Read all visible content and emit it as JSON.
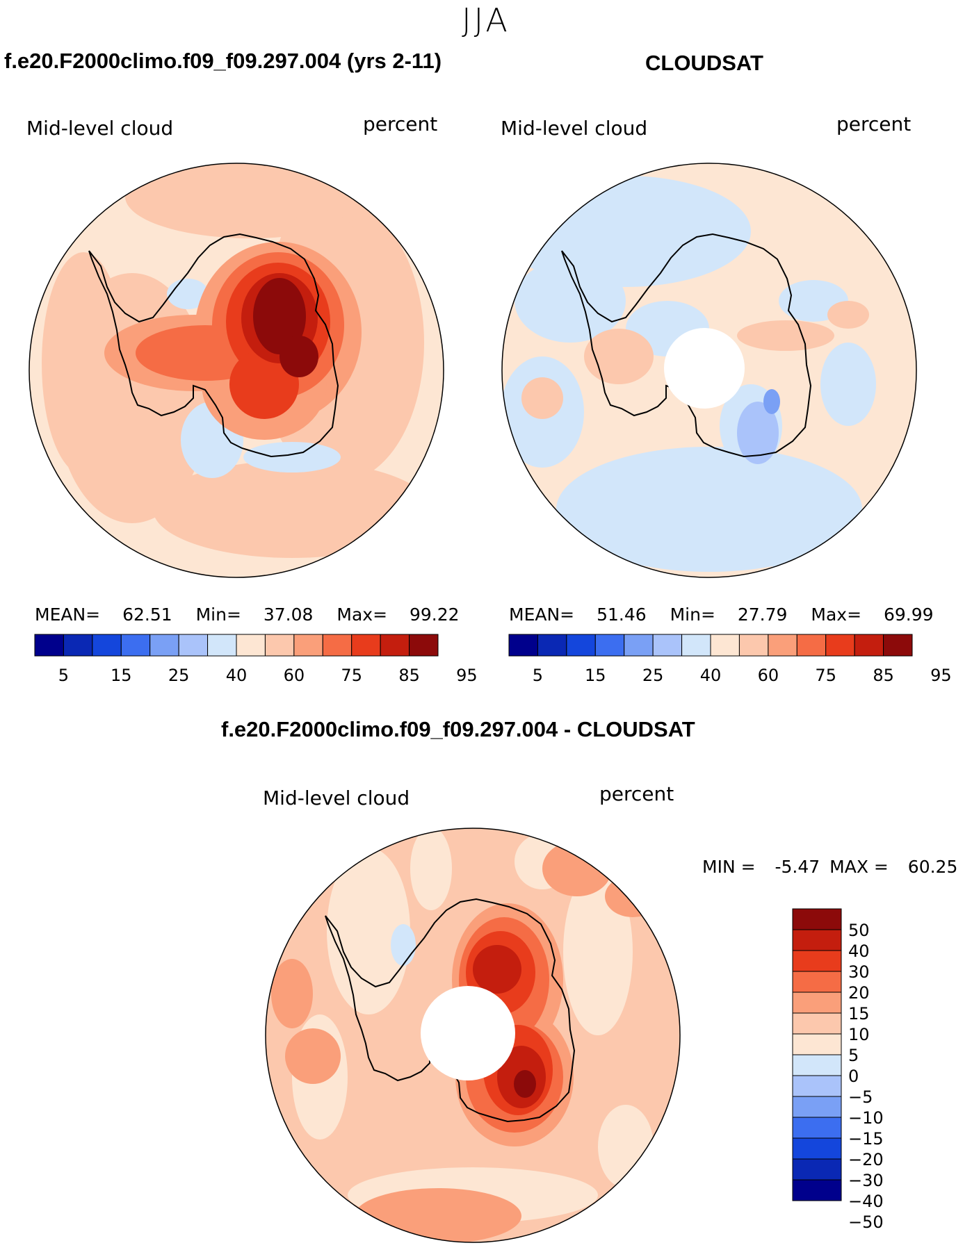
{
  "page": {
    "season": "JJA",
    "panel_left_title": "f.e20.F2000climo.f09_f09.297.004 (yrs 2-11)",
    "panel_right_title": "CLOUDSAT",
    "diff_title": "f.e20.F2000climo.f09_f09.297.004 - CLOUDSAT"
  },
  "chart_data": [
    {
      "type": "heatmap",
      "projection": "south-polar-stereographic",
      "title": "f.e20.F2000climo.f09_f09.297.004 (yrs 2-11)",
      "variable": "Mid-level cloud",
      "units": "percent",
      "stats": {
        "mean_label": "MEAN=",
        "mean": "62.51",
        "min_label": "Min=",
        "min": "37.08",
        "max_label": "Max=",
        "max": "99.22"
      },
      "levels": [
        "5",
        "15",
        "25",
        "40",
        "60",
        "75",
        "85",
        "95"
      ],
      "colors": [
        "#00008c",
        "#0a28b4",
        "#1446dc",
        "#3c6ef0",
        "#7aa0f5",
        "#aac3fa",
        "#d2e6fa",
        "#fde6d3",
        "#fcc8ad",
        "#fa9f7a",
        "#f56c45",
        "#e83c1c",
        "#c41e0e",
        "#8c0a0a"
      ]
    },
    {
      "type": "heatmap",
      "projection": "south-polar-stereographic",
      "title": "CLOUDSAT",
      "variable": "Mid-level cloud",
      "units": "percent",
      "stats": {
        "mean_label": "MEAN=",
        "mean": "51.46",
        "min_label": "Min=",
        "min": "27.79",
        "max_label": "Max=",
        "max": "69.99"
      },
      "levels": [
        "5",
        "15",
        "25",
        "40",
        "60",
        "75",
        "85",
        "95"
      ],
      "colors": [
        "#00008c",
        "#0a28b4",
        "#1446dc",
        "#3c6ef0",
        "#7aa0f5",
        "#aac3fa",
        "#d2e6fa",
        "#fde6d3",
        "#fcc8ad",
        "#fa9f7a",
        "#f56c45",
        "#e83c1c",
        "#c41e0e",
        "#8c0a0a"
      ]
    },
    {
      "type": "heatmap",
      "projection": "south-polar-stereographic",
      "title": "f.e20.F2000climo.f09_f09.297.004 - CLOUDSAT",
      "variable": "Mid-level cloud",
      "units": "percent",
      "stats": {
        "min_label": "MIN =",
        "min": "-5.47",
        "max_label": "MAX =",
        "max": "60.25"
      },
      "levels": [
        "50",
        "40",
        "30",
        "20",
        "15",
        "10",
        "5",
        "0",
        "−5",
        "−10",
        "−15",
        "−20",
        "−30",
        "−40",
        "−50"
      ],
      "colors": [
        "#8c0a0a",
        "#c41e0e",
        "#e83c1c",
        "#f56c45",
        "#fa9f7a",
        "#fcc8ad",
        "#fde6d3",
        "#d2e6fa",
        "#aac3fa",
        "#7aa0f5",
        "#3c6ef0",
        "#1446dc",
        "#0a28b4",
        "#00008c"
      ]
    }
  ]
}
